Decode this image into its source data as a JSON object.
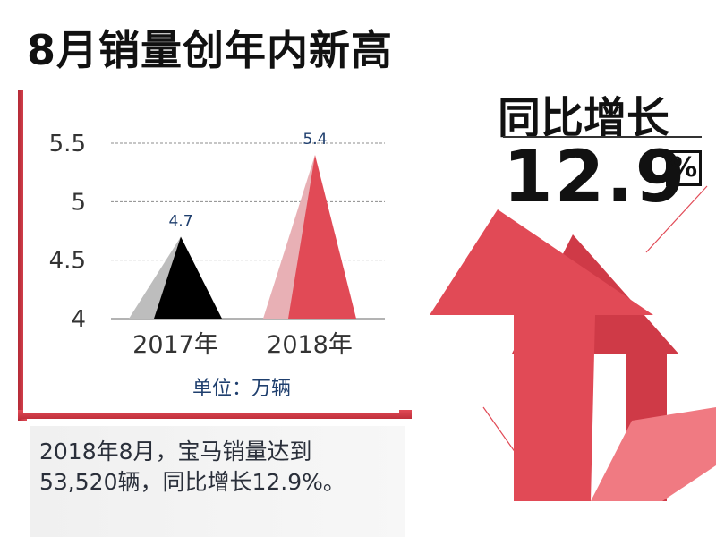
{
  "title": "8月销量创年内新高",
  "yoy": {
    "label": "同比增长",
    "value": "12.9",
    "unit": "%"
  },
  "unit_label": "单位：万辆",
  "caption": {
    "line1": "2018年8月，宝马销量达到",
    "line2": "53,520辆，同比增长12.9%。"
  },
  "colors": {
    "accent": "#e14a56",
    "accent_light": "#e8b0b5",
    "dark": "#000000",
    "gray": "#bdbdbd"
  },
  "chart_data": {
    "type": "bar",
    "categories": [
      "2017年",
      "2018年"
    ],
    "values": [
      4.7,
      5.4
    ],
    "data_labels": [
      "4.7",
      "5.4"
    ],
    "yticks": [
      "4",
      "4.5",
      "5",
      "5.5"
    ],
    "ylim": [
      4,
      5.5
    ],
    "grid": true
  }
}
